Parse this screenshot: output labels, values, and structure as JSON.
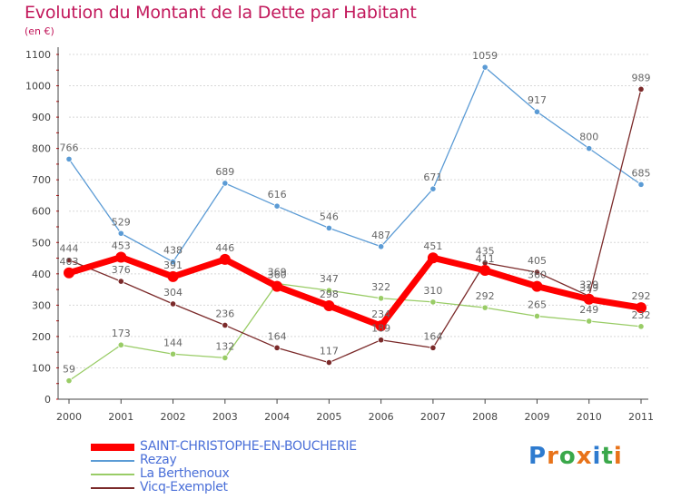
{
  "header": {
    "title": "Evolution du Montant de la Dette par Habitant",
    "subtitle": "(en €)"
  },
  "brand": {
    "logo_text": "Proxiti",
    "letter_colors": [
      "#2e7bcf",
      "#e8731a",
      "#3aa84a",
      "#e8731a",
      "#2e7bcf",
      "#3aa84a",
      "#e8731a"
    ]
  },
  "colors": {
    "title": "#c2185b",
    "grid": "#d8d8d8",
    "axis": "#444444",
    "tick_accent": "#cc0000",
    "label": "#666666"
  },
  "chart_data": {
    "type": "line",
    "title": "Evolution du Montant de la Dette par Habitant",
    "ylabel": "(en €)",
    "xlabel": "",
    "x": [
      2000,
      2001,
      2002,
      2003,
      2004,
      2005,
      2006,
      2007,
      2008,
      2009,
      2010,
      2011
    ],
    "ylim": [
      0,
      1100
    ],
    "yticks": [
      0,
      100,
      200,
      300,
      400,
      500,
      600,
      700,
      800,
      900,
      1000,
      1100
    ],
    "grid": "horizontal",
    "legend_position": "bottom-left",
    "series": [
      {
        "name": "SAINT-CHRISTOPHE-EN-BOUCHERIE",
        "color": "#ff0000",
        "values": [
          403,
          453,
          391,
          446,
          360,
          298,
          234,
          451,
          411,
          360,
          319,
          292
        ],
        "labels": [
          "403",
          "453",
          "391",
          "446",
          "360",
          "298",
          "234",
          "451",
          "411",
          "360",
          "319",
          "292"
        ],
        "highlight": true
      },
      {
        "name": "Rezay",
        "color": "#5b9bd5",
        "values": [
          766,
          529,
          438,
          689,
          616,
          546,
          487,
          671,
          1059,
          917,
          800,
          685
        ],
        "labels": [
          "766",
          "529",
          "438",
          "689",
          "616",
          "546",
          "487",
          "671",
          "1059",
          "917",
          "800",
          "685"
        ]
      },
      {
        "name": "La Berthenoux",
        "color": "#99cc66",
        "values": [
          59,
          173,
          144,
          132,
          369,
          347,
          322,
          310,
          292,
          265,
          249,
          232
        ],
        "labels": [
          "59",
          "173",
          "144",
          "132",
          "369",
          "347",
          "322",
          "310",
          "292",
          "265",
          "249",
          "232"
        ]
      },
      {
        "name": "Vicq-Exemplet",
        "color": "#7b2a2a",
        "values": [
          444,
          376,
          304,
          236,
          164,
          117,
          189,
          164,
          435,
          405,
          329,
          989
        ],
        "labels": [
          "444",
          "376",
          "304",
          "236",
          "164",
          "117",
          "189",
          "164",
          "435",
          "405",
          "329",
          "989"
        ]
      }
    ]
  }
}
